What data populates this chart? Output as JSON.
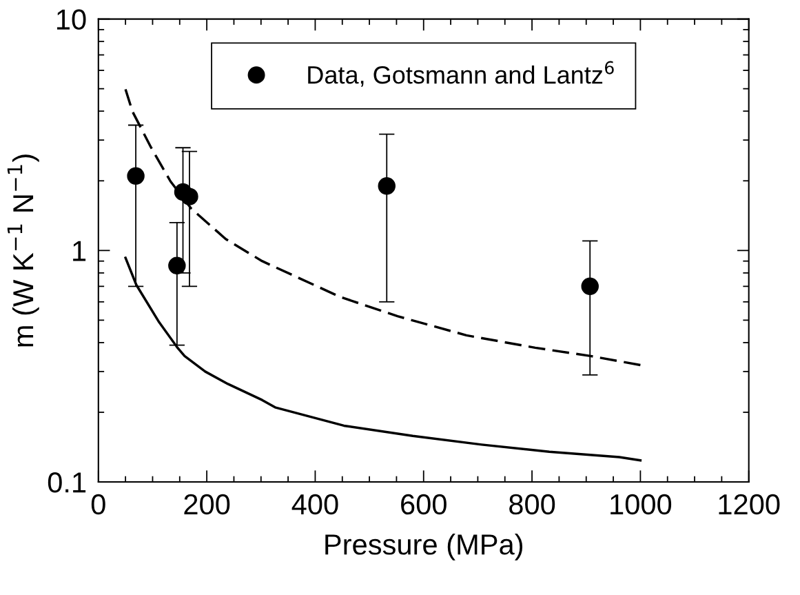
{
  "chart_data": {
    "type": "line",
    "xlabel": "Pressure (MPa)",
    "ylabel": "m (W K$^{−1}$ N$^{−1}$)",
    "log": "y",
    "xlim": [
      0,
      1200
    ],
    "xticks": [
      0,
      200,
      400,
      600,
      800,
      1000,
      1200
    ],
    "ylim": [
      0.1,
      10
    ],
    "yticks": [
      0.1,
      1,
      10
    ],
    "grid": false,
    "legend": "top",
    "series": [
      {
        "name": "Data, Gotsmann and Lantz$^{6}$",
        "type": "scatter",
        "color": "#000000",
        "marker": "circle",
        "x": [
          69,
          145,
          156,
          168,
          532,
          907
        ],
        "values": [
          2.1,
          0.86,
          1.79,
          1.71,
          1.9,
          0.7
        ],
        "errors": [
          [
            0.7,
            3.48
          ],
          [
            0.39,
            1.32
          ],
          [
            0.8,
            2.78
          ],
          [
            0.7,
            2.68
          ],
          [
            0.6,
            3.18
          ],
          [
            0.29,
            1.1
          ]
        ]
      },
      {
        "color": "#000000",
        "line_style": "dashed",
        "marker": "none",
        "x": [
          50,
          63,
          97,
          133,
          171,
          235,
          302,
          446,
          552,
          679,
          806,
          908,
          1000
        ],
        "values": [
          4.97,
          3.98,
          2.79,
          1.99,
          1.52,
          1.12,
          0.9,
          0.63,
          0.52,
          0.43,
          0.38,
          0.35,
          0.32
        ]
      },
      {
        "color": "#000000",
        "line_style": "solid",
        "marker": "none",
        "x": [
          50,
          70,
          112,
          146,
          159,
          197,
          239,
          302,
          326,
          453,
          580,
          707,
          832,
          961,
          1000
        ],
        "values": [
          0.93,
          0.71,
          0.49,
          0.38,
          0.35,
          0.3,
          0.265,
          0.226,
          0.21,
          0.175,
          0.158,
          0.145,
          0.135,
          0.128,
          0.124
        ]
      }
    ]
  }
}
